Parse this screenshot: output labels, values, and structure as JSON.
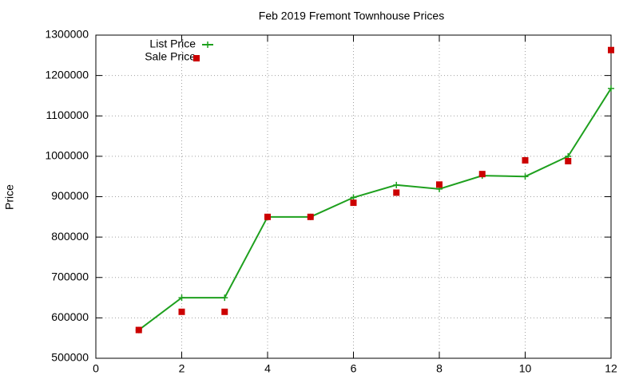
{
  "chart_data": {
    "type": "line",
    "title": "Feb 2019 Fremont Townhouse Prices",
    "y_label": "Price",
    "x": [
      1,
      2,
      3,
      4,
      5,
      6,
      7,
      8,
      9,
      10,
      11,
      12
    ],
    "series": [
      {
        "name": "List Price",
        "color": "#1ea01e",
        "mode": "lines+markers",
        "values": [
          570000,
          650000,
          650000,
          850000,
          850000,
          898000,
          929000,
          919000,
          952000,
          950000,
          1000000,
          1168000
        ]
      },
      {
        "name": "Sale Price",
        "color": "#cc0000",
        "mode": "markers",
        "values": [
          570000,
          615000,
          615000,
          850000,
          850000,
          885000,
          910000,
          930000,
          956000,
          990000,
          988000,
          1263000
        ]
      }
    ],
    "xlim": [
      0,
      12
    ],
    "xticks": [
      0,
      2,
      4,
      6,
      8,
      10,
      12
    ],
    "ylim": [
      500000,
      1300000
    ],
    "yticks": [
      500000,
      600000,
      700000,
      800000,
      900000,
      1000000,
      1100000,
      1200000,
      1300000
    ],
    "grid": true,
    "legend": "top-left"
  }
}
